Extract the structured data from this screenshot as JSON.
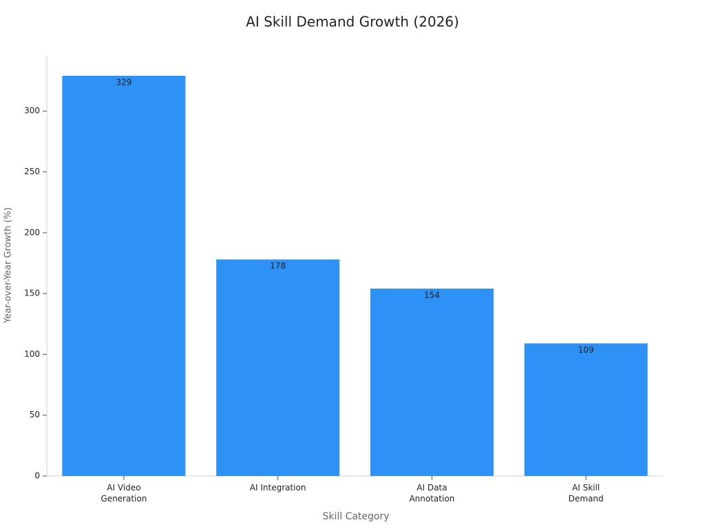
{
  "chart_data": {
    "type": "bar",
    "title": "AI Skill Demand Growth (2026)",
    "x_label": "Skill Category",
    "y_label": "Year-over-Year Growth (%)",
    "categories": [
      "AI Video\nGeneration",
      "AI Integration",
      "AI Data\nAnnotation",
      "AI Skill\nDemand"
    ],
    "values": [
      329,
      178,
      154,
      109
    ],
    "color": "#2e91f5",
    "ylim": [
      0,
      346
    ],
    "yticks": [
      0,
      50,
      100,
      150,
      200,
      250,
      300
    ],
    "grid": false
  }
}
